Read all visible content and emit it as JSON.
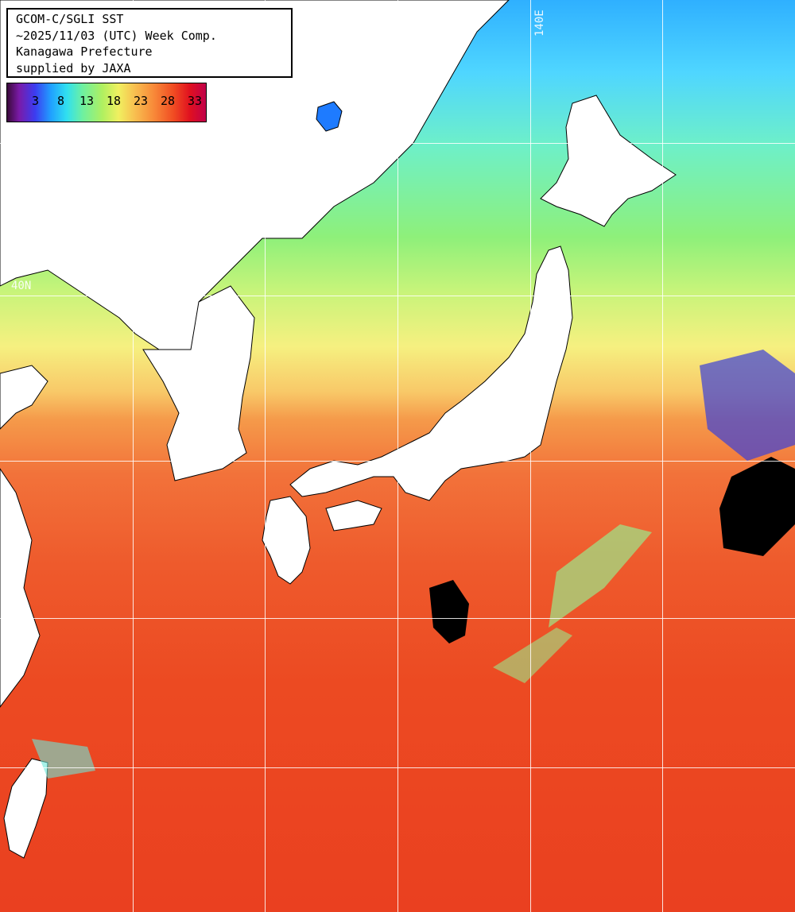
{
  "title_box": {
    "lines": [
      "GCOM-C/SGLI SST",
      "~2025/11/03 (UTC) Week Comp.",
      "Kanagawa Prefecture",
      "supplied by JAXA"
    ]
  },
  "colorbar": {
    "ticks": [
      "3",
      "8",
      "13",
      "18",
      "23",
      "28",
      "33"
    ]
  },
  "grid_labels": {
    "lon_140": "140E",
    "lat_40": "40N"
  }
}
